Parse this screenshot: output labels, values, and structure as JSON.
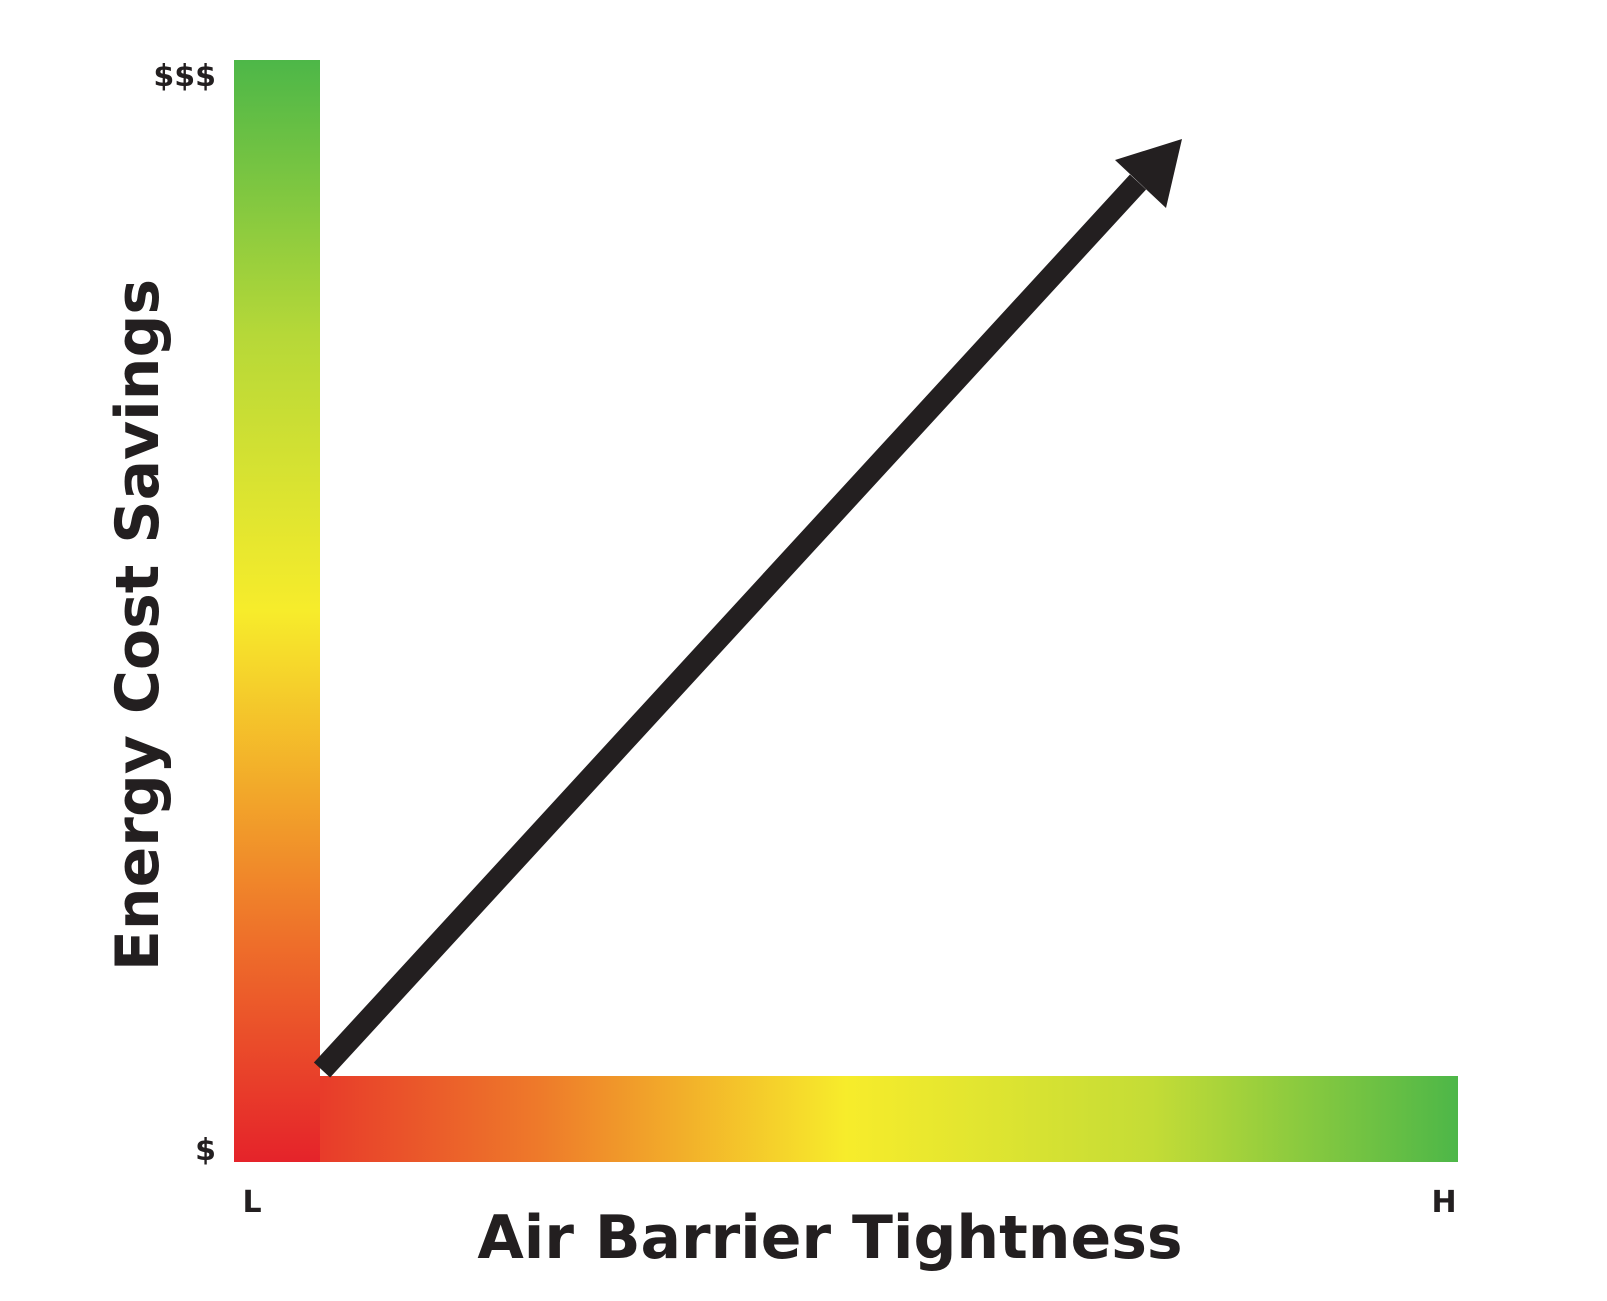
{
  "y_axis": {
    "label": "Energy Cost Savings",
    "top_label": "$$$",
    "bottom_label": "$"
  },
  "x_axis": {
    "label": "Air Barrier Tightness",
    "left_label": "L",
    "right_label": "H"
  }
}
